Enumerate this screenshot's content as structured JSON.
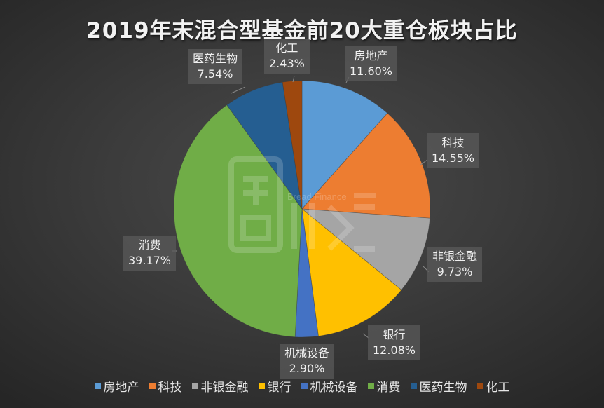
{
  "chart_data": {
    "type": "pie",
    "title": "2019年末混合型基金前20大重仓板块占比",
    "categories": [
      "房地产",
      "科技",
      "非银金融",
      "银行",
      "机械设备",
      "消费",
      "医药生物",
      "化工"
    ],
    "values": [
      11.6,
      14.55,
      9.73,
      12.08,
      2.9,
      39.17,
      7.54,
      2.43
    ],
    "value_labels": [
      "11.60%",
      "14.55%",
      "9.73%",
      "12.08%",
      "2.90%",
      "39.17%",
      "7.54%",
      "2.43%"
    ],
    "colors": [
      "#5b9bd5",
      "#ed7d31",
      "#a5a5a5",
      "#ffc000",
      "#4472c4",
      "#70ad47",
      "#255e91",
      "#9e480e"
    ],
    "legend_position": "bottom",
    "start_angle_deg": 0,
    "direction": "clockwise"
  },
  "title": "2019年末混合型基金前20大重仓板块占比",
  "labels": [
    {
      "name": "房地产",
      "pct": "11.60%"
    },
    {
      "name": "科技",
      "pct": "14.55%"
    },
    {
      "name": "非银金融",
      "pct": "9.73%"
    },
    {
      "name": "银行",
      "pct": "12.08%"
    },
    {
      "name": "机械设备",
      "pct": "2.90%"
    },
    {
      "name": "消费",
      "pct": "39.17%"
    },
    {
      "name": "医药生物",
      "pct": "7.54%"
    },
    {
      "name": "化工",
      "pct": "2.43%"
    }
  ],
  "legend": [
    {
      "label": "房地产",
      "color": "#5b9bd5"
    },
    {
      "label": "科技",
      "color": "#ed7d31"
    },
    {
      "label": "非银金融",
      "color": "#a5a5a5"
    },
    {
      "label": "银行",
      "color": "#ffc000"
    },
    {
      "label": "机械设备",
      "color": "#4472c4"
    },
    {
      "label": "消费",
      "color": "#70ad47"
    },
    {
      "label": "医药生物",
      "color": "#255e91"
    },
    {
      "label": "化工",
      "color": "#9e480e"
    }
  ],
  "watermark": {
    "text": "Bread Finance"
  }
}
